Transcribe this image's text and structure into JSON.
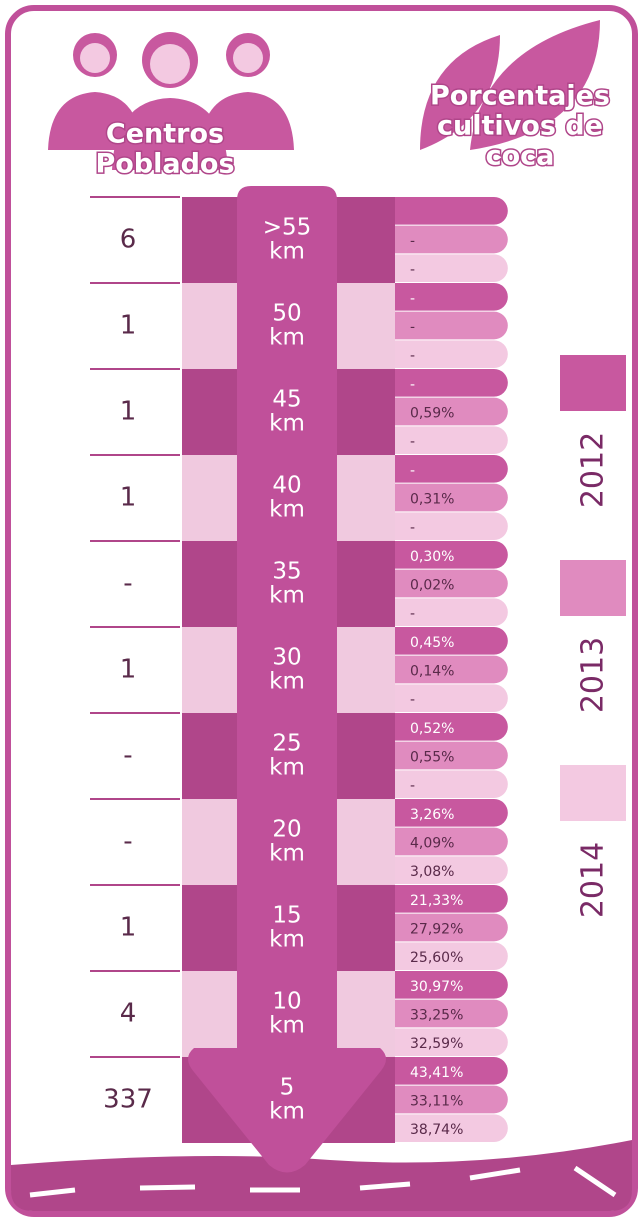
{
  "header": {
    "left_title": [
      "Centros",
      "Poblados"
    ],
    "right_title": [
      "Porcentajes",
      "cultivos de",
      "coca"
    ]
  },
  "rows": [
    {
      "distance": ">55",
      "unit": "km",
      "centros": "6",
      "pct": [
        "",
        "-",
        "-"
      ]
    },
    {
      "distance": "50",
      "unit": "km",
      "centros": "1",
      "pct": [
        "-",
        "-",
        "-"
      ]
    },
    {
      "distance": "45",
      "unit": "km",
      "centros": "1",
      "pct": [
        "-",
        "0,59%",
        "-"
      ]
    },
    {
      "distance": "40",
      "unit": "km",
      "centros": "1",
      "pct": [
        "-",
        "0,31%",
        "-"
      ]
    },
    {
      "distance": "35",
      "unit": "km",
      "centros": "-",
      "pct": [
        "0,30%",
        "0,02%",
        "-"
      ]
    },
    {
      "distance": "30",
      "unit": "km",
      "centros": "1",
      "pct": [
        "0,45%",
        "0,14%",
        "-"
      ]
    },
    {
      "distance": "25",
      "unit": "km",
      "centros": "-",
      "pct": [
        "0,52%",
        "0,55%",
        "-"
      ]
    },
    {
      "distance": "20",
      "unit": "km",
      "centros": "-",
      "pct": [
        "3,26%",
        "4,09%",
        "3,08%"
      ]
    },
    {
      "distance": "15",
      "unit": "km",
      "centros": "1",
      "pct": [
        "21,33%",
        "27,92%",
        "25,60%"
      ]
    },
    {
      "distance": "10",
      "unit": "km",
      "centros": "4",
      "pct": [
        "30,97%",
        "33,25%",
        "32,59%"
      ]
    },
    {
      "distance": "5",
      "unit": "km",
      "centros": "337",
      "pct": [
        "43,41%",
        "33,11%",
        "38,74%"
      ]
    }
  ],
  "legend": [
    {
      "year": "2012",
      "color": "#c8589f"
    },
    {
      "year": "2013",
      "color": "#e08bbf"
    },
    {
      "year": "2014",
      "color": "#f3c9e1"
    }
  ]
}
